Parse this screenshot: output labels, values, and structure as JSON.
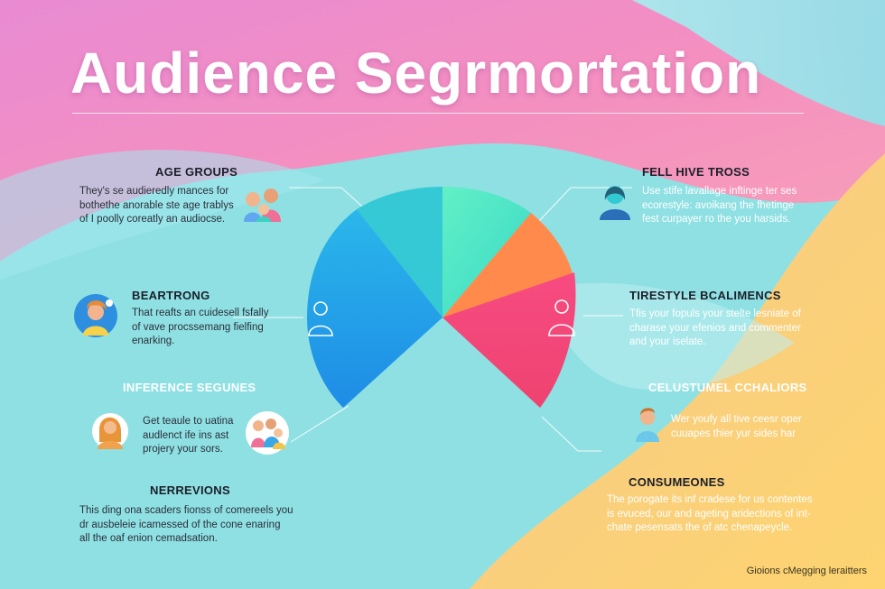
{
  "title": "Audience Segrmortation",
  "segments": {
    "age_groups": {
      "heading": "AGE GROUPS",
      "lines": [
        "They's se audieredly mances for",
        "bothethe anorable ste age trablys",
        "of I poolly coreatly an audiocse."
      ]
    },
    "beartrong": {
      "heading": "BEARTRONG",
      "lines": [
        "That reafts an cuidesell fsfally",
        "of vave procssemang fielfing",
        "enarking."
      ]
    },
    "inference": {
      "heading": "INFERENCE SEGUNES",
      "lines": [
        "Get teaule to uatina",
        "audlenct ife ins ast",
        "projery your sors."
      ]
    },
    "nerrevions": {
      "heading": "NERREVIONS",
      "lines": [
        "This ding ona scaders fionss of comereels you",
        "dr ausbeleie icamessed of the cone enaring",
        "all the oaf enion cemadsation."
      ]
    },
    "felt_hive": {
      "heading": "FELL HIVE TROSS",
      "lines": [
        "Use stife lavallage inftinge ter ses",
        "ecorestyle: avoikang the fhetinge",
        "fest curpayer ro the you harsids."
      ]
    },
    "tirestyle": {
      "heading": "TIRESTYLE BCALIMENCS",
      "lines": [
        "Tfis your fopuls your stelte lesniate of",
        "charase your efenios and commenter",
        "and your iselate."
      ]
    },
    "celustumel": {
      "heading": "CELUSTUMEL CCHALIORS",
      "lines": [
        "Wer youfy all tive ceesr oper",
        "cuuapes thier yur sides har"
      ]
    },
    "consumeones": {
      "heading": "CONSUMEONES",
      "lines": [
        "The porogate its inf cradese for us contentes",
        "is evuced, our and ageting aridections of int-",
        "chate pesensats the of atc chenapeycle."
      ]
    }
  },
  "footer": "Gioions cMegging leraitters",
  "icons": [
    "people-group-icon",
    "woman-avatar-icon",
    "family-icon",
    "person-icon",
    "person-outline-icon",
    "person-outline-icon",
    "man-avatar-icon",
    "woman-portrait-icon"
  ],
  "colors": {
    "slice_cyan": "#35c9d6",
    "slice_blue": "#1a8fe3",
    "slice_mint": "#4fe6c4",
    "slice_orange": "#ff8a4c",
    "slice_pink": "#f2497f",
    "bg_pink": "#f08fc7",
    "bg_cyan": "#8fe0e3",
    "bg_yellow": "#fbd27a"
  }
}
